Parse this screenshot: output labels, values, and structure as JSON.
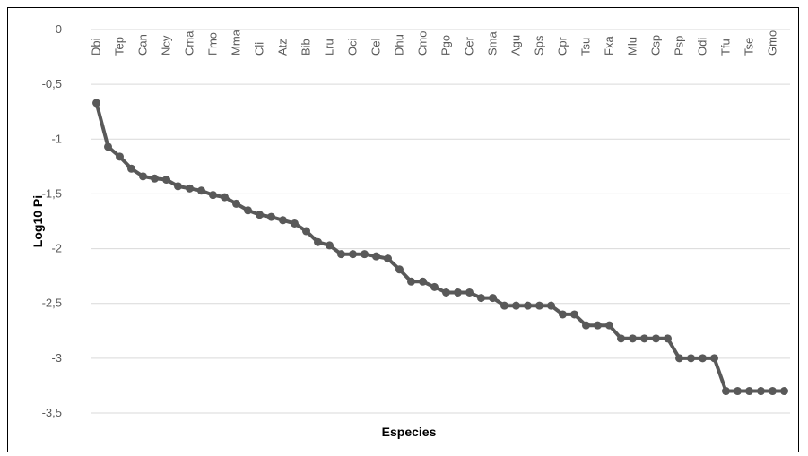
{
  "chart_data": {
    "type": "line",
    "title": "",
    "xlabel": "Especies",
    "ylabel": "Log10 Pi",
    "ylim": [
      -3.5,
      0
    ],
    "yticks": [
      0,
      -0.5,
      -1,
      -1.5,
      -2,
      -2.5,
      -3,
      -3.5
    ],
    "ytick_labels": [
      "0",
      "-0,5",
      "-1",
      "-1,5",
      "-2",
      "-2,5",
      "-3",
      "-3,5"
    ],
    "x_axis_position": "top",
    "grid": true,
    "legend": "none",
    "line_color": "#595959",
    "grid_color": "#d9d9d9",
    "labeled_categories": [
      "Dbi",
      "Tep",
      "Can",
      "Ncy",
      "Cma",
      "Fmo",
      "Mma",
      "Cli",
      "Atz",
      "Bib",
      "Lru",
      "Oci",
      "Cel",
      "Dhu",
      "Cmo",
      "Pgo",
      "Cer",
      "Sma",
      "Agu",
      "Sps",
      "Cpr",
      "Tsu",
      "Fxa",
      "Mlu",
      "Csp",
      "Psp",
      "Odi",
      "Tfu",
      "Tse",
      "Gmo"
    ],
    "values": [
      -0.67,
      -1.07,
      -1.16,
      -1.27,
      -1.34,
      -1.36,
      -1.37,
      -1.43,
      -1.45,
      -1.47,
      -1.51,
      -1.53,
      -1.59,
      -1.65,
      -1.69,
      -1.71,
      -1.74,
      -1.77,
      -1.84,
      -1.94,
      -1.97,
      -2.05,
      -2.05,
      -2.05,
      -2.07,
      -2.09,
      -2.19,
      -2.3,
      -2.3,
      -2.35,
      -2.4,
      -2.4,
      -2.4,
      -2.45,
      -2.45,
      -2.52,
      -2.52,
      -2.52,
      -2.52,
      -2.52,
      -2.6,
      -2.6,
      -2.7,
      -2.7,
      -2.7,
      -2.82,
      -2.82,
      -2.82,
      -2.82,
      -2.82,
      -3.0,
      -3.0,
      -3.0,
      -3.0,
      -3.3,
      -3.3,
      -3.3,
      -3.3,
      -3.3,
      -3.3
    ]
  }
}
